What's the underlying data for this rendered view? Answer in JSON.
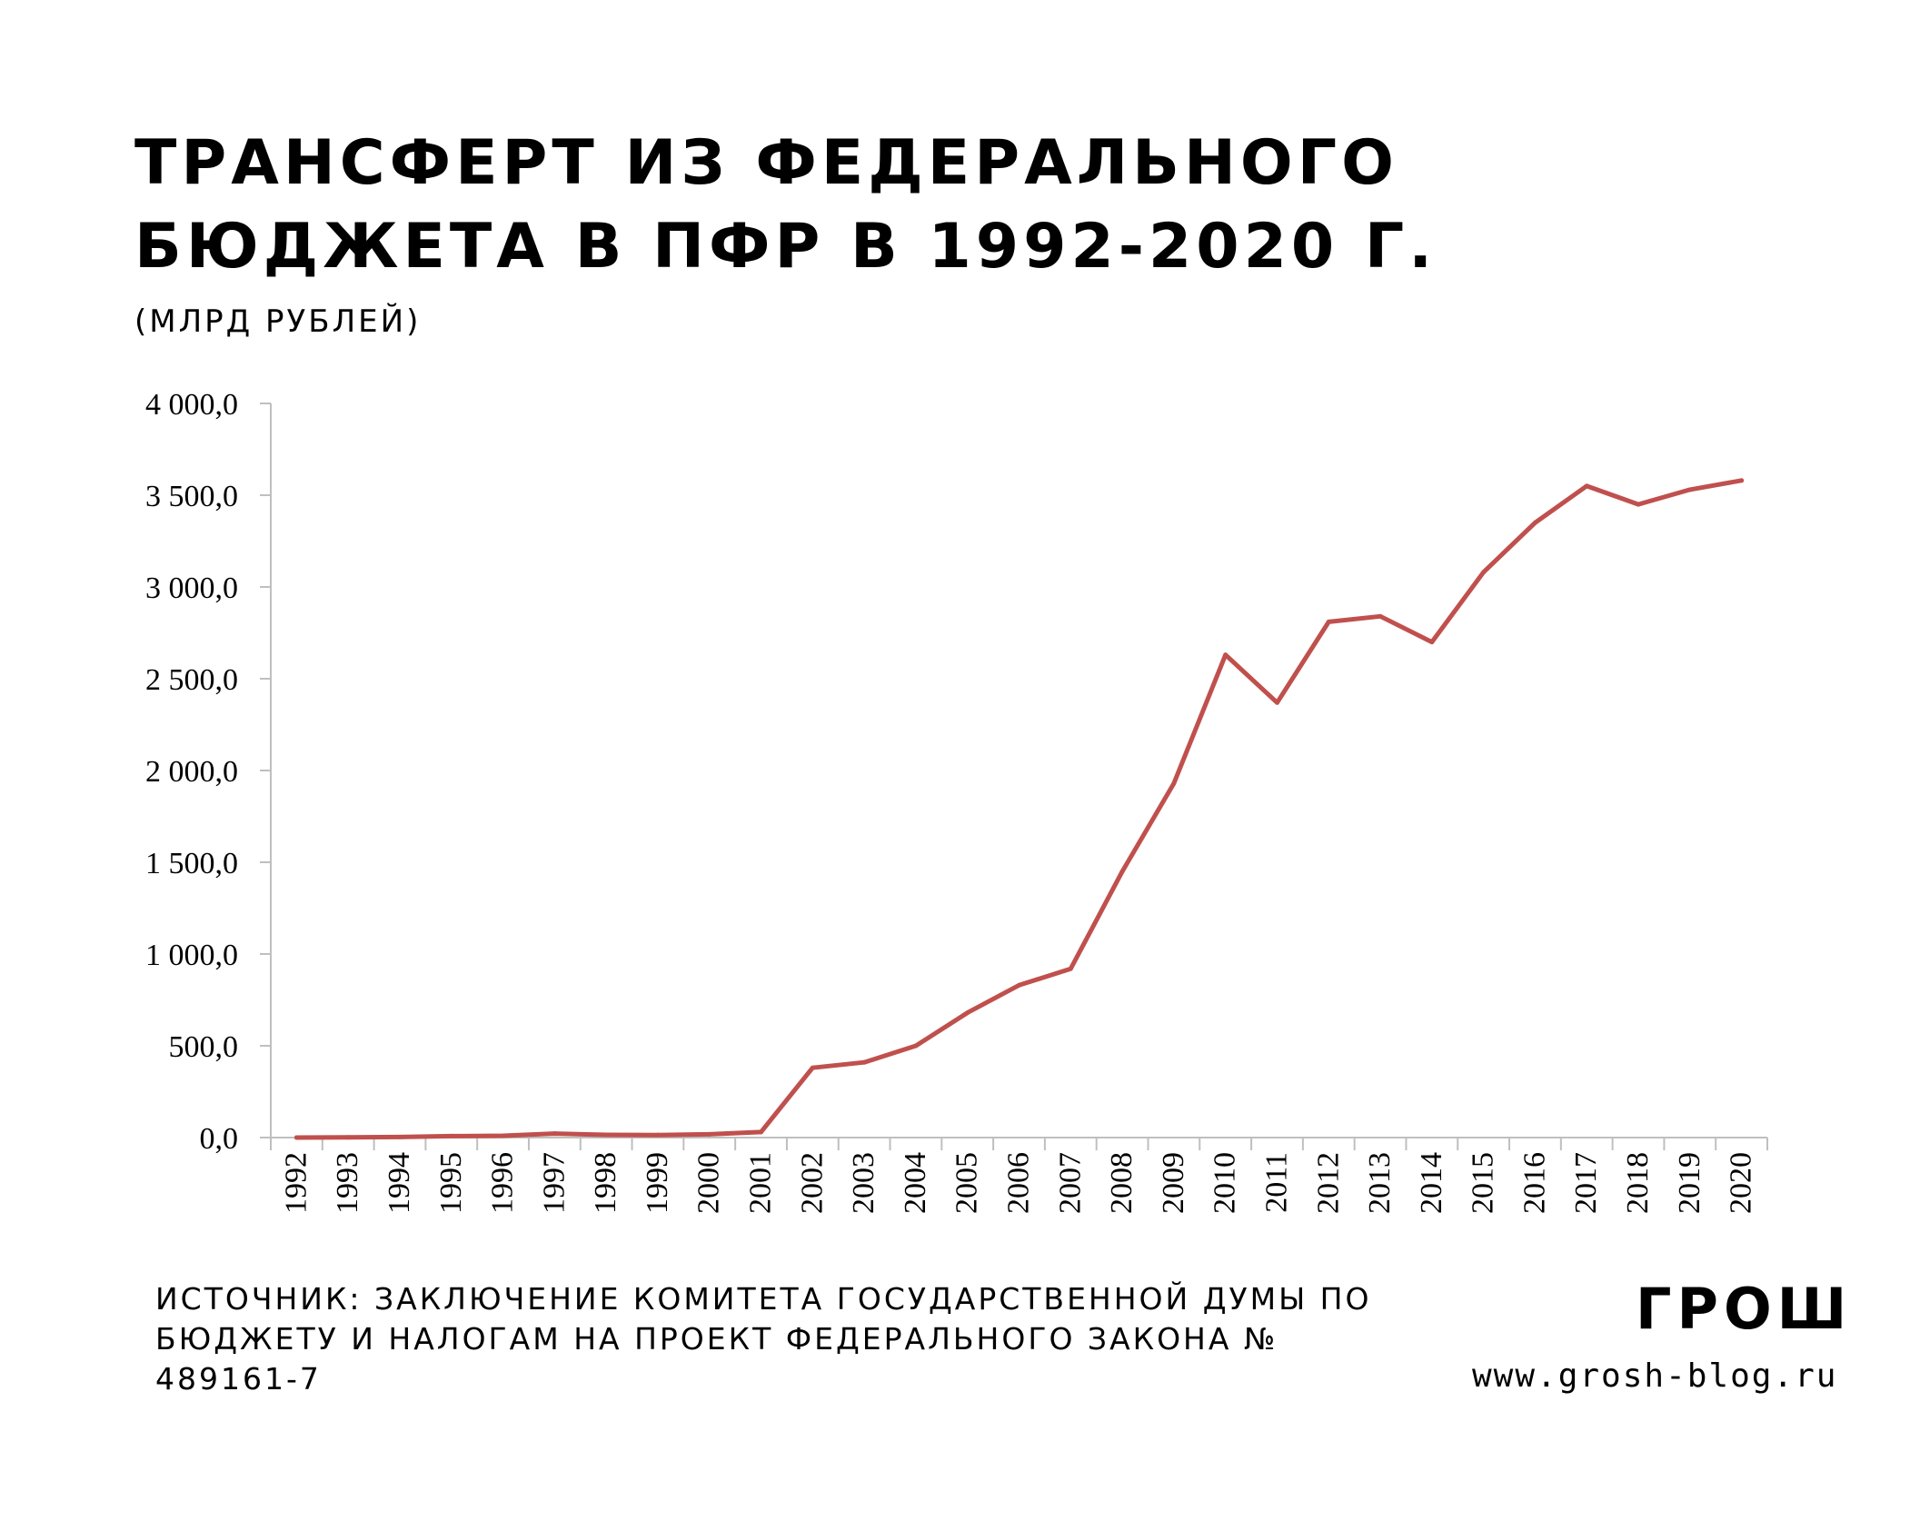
{
  "header": {
    "title": "ТРАНСФЕРТ ИЗ ФЕДЕРАЛЬНОГО БЮДЖЕТА В ПФР В 1992-2020 Г.",
    "unit": "(МЛРД РУБЛЕЙ)"
  },
  "footer": {
    "source": "ИСТОЧНИК: ЗАКЛЮЧЕНИЕ КОМИТЕТА ГОСУДАРСТВЕННОЙ ДУМЫ ПО БЮДЖЕТУ И НАЛОГАМ НА ПРОЕКТ ФЕДЕРАЛЬНОГО ЗАКОНА № 489161-7",
    "logo": "ГРОШ",
    "site": "www.grosh-blog.ru"
  },
  "colors": {
    "line": "#c0504d",
    "axis": "#bfbfbf"
  },
  "chart_data": {
    "type": "line",
    "title": "ТРАНСФЕРТ ИЗ ФЕДЕРАЛЬНОГО БЮДЖЕТА В ПФР В 1992-2020 Г.",
    "ylabel": "(МЛРД РУБЛЕЙ)",
    "xlabel": "",
    "ylim": [
      0,
      4000
    ],
    "yticks": [
      0,
      500,
      1000,
      1500,
      2000,
      2500,
      3000,
      3500,
      4000
    ],
    "ytick_labels": [
      "0,0",
      "500,0",
      "1 000,0",
      "1 500,0",
      "2 000,0",
      "2 500,0",
      "3 000,0",
      "3 500,0",
      "4 000,0"
    ],
    "grid": false,
    "legend": "none",
    "categories": [
      "1992",
      "1993",
      "1994",
      "1995",
      "1996",
      "1997",
      "1998",
      "1999",
      "2000",
      "2001",
      "2002",
      "2003",
      "2004",
      "2005",
      "2006",
      "2007",
      "2008",
      "2009",
      "2010",
      "2011",
      "2012",
      "2013",
      "2014",
      "2015",
      "2016",
      "2017",
      "2018",
      "2019",
      "2020"
    ],
    "series": [
      {
        "values": [
          0,
          1,
          3,
          8,
          10,
          22,
          15,
          14,
          18,
          30,
          380,
          410,
          500,
          680,
          830,
          920,
          1450,
          1930,
          2630,
          2370,
          2810,
          2840,
          2700,
          3080,
          3350,
          3550,
          3450,
          3530,
          3580
        ]
      }
    ]
  }
}
